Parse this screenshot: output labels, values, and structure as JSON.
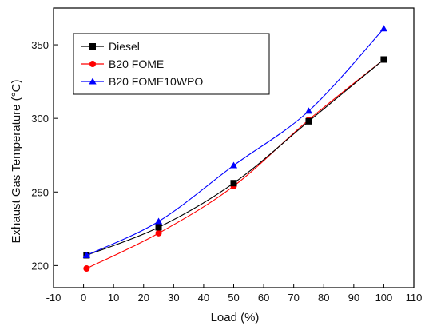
{
  "chart_data": {
    "type": "line",
    "title": "",
    "xlabel": "Load (%)",
    "ylabel": "Exhaust Gas Temperature (°C)",
    "xlim": [
      -10,
      110
    ],
    "ylim": [
      185,
      375
    ],
    "x_ticks": [
      -10,
      0,
      10,
      20,
      30,
      40,
      50,
      60,
      70,
      80,
      90,
      100,
      110
    ],
    "y_ticks": [
      200,
      250,
      300,
      350
    ],
    "legend_position": "top-left",
    "grid": false,
    "series": [
      {
        "name": "Diesel",
        "color": "#000000",
        "marker": "square",
        "x": [
          1,
          25,
          50,
          75,
          100
        ],
        "y": [
          207,
          226,
          256,
          298,
          340
        ]
      },
      {
        "name": "B20 FOME",
        "color": "#ff0000",
        "marker": "circle",
        "x": [
          1,
          25,
          50,
          75,
          100
        ],
        "y": [
          198,
          222,
          254,
          299,
          340
        ]
      },
      {
        "name": "B20 FOME10WPO",
        "color": "#0000ff",
        "marker": "triangle",
        "x": [
          1,
          25,
          50,
          75,
          100
        ],
        "y": [
          207,
          230,
          268,
          305,
          361
        ]
      }
    ]
  }
}
